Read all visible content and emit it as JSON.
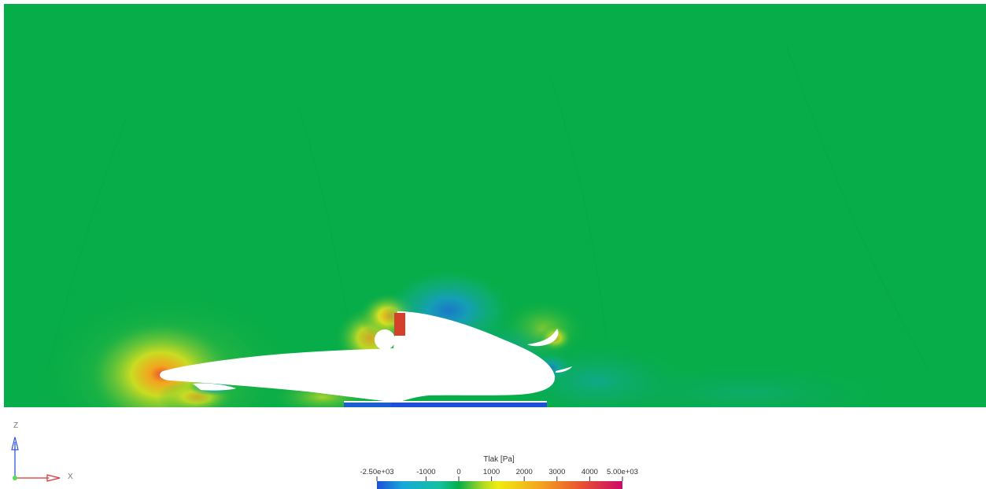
{
  "scene": {
    "background_color": "#ffffff",
    "field_base_color": "#07ad48",
    "geometry_color": "#ffffff",
    "highlight_patch_color": "#d4402a"
  },
  "axes_triad": {
    "z_label": "Z",
    "x_label": "X",
    "z_color": "#3355dd",
    "x_color": "#e03030",
    "origin_color": "#50e050"
  },
  "colorbar": {
    "title": "Tlak [Pa]",
    "min": -2500,
    "max": 5000,
    "ticks": [
      {
        "value": -2500,
        "label": "-2.50e+03"
      },
      {
        "value": -1000,
        "label": "-1000"
      },
      {
        "value": 0,
        "label": "0"
      },
      {
        "value": 1000,
        "label": "1000"
      },
      {
        "value": 2000,
        "label": "2000"
      },
      {
        "value": 3000,
        "label": "3000"
      },
      {
        "value": 4000,
        "label": "4000"
      },
      {
        "value": 5000,
        "label": "5.00e+03"
      }
    ],
    "color_stops": [
      {
        "value": -2500,
        "color": "#1e4fd8"
      },
      {
        "value": -1700,
        "color": "#17a8d8"
      },
      {
        "value": -600,
        "color": "#16c0a0"
      },
      {
        "value": 0,
        "color": "#07ad48"
      },
      {
        "value": 800,
        "color": "#b8dd20"
      },
      {
        "value": 1200,
        "color": "#f0ec10"
      },
      {
        "value": 2500,
        "color": "#f3a31f"
      },
      {
        "value": 3700,
        "color": "#e85530"
      },
      {
        "value": 5000,
        "color": "#cc0a66"
      }
    ]
  }
}
